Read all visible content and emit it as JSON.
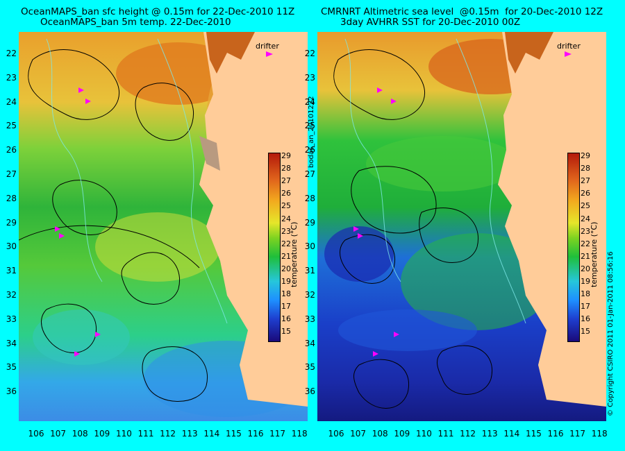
{
  "left": {
    "title_line1": "OceanMAPS_ban sfc height @ 0.15m for 22-Dec-2010 11Z",
    "title_line2": "OceanMAPS_ban 5m temp. 22-Dec-2010",
    "drifter_label": "drifter"
  },
  "right": {
    "title_line1": "CMRNRT Altimetric sea level  @0.15m  for 20-Dec-2010 12Z",
    "title_line2": "3day AVHRR SST for 20-Dec-2010 00Z",
    "drifter_label": "drifter"
  },
  "latitudes": [
    "22",
    "23",
    "24",
    "25",
    "26",
    "27",
    "28",
    "29",
    "30",
    "31",
    "32",
    "33",
    "34",
    "35",
    "36"
  ],
  "longitudes": [
    "106",
    "107",
    "108",
    "109",
    "110",
    "111",
    "112",
    "113",
    "114",
    "115",
    "116",
    "117",
    "118"
  ],
  "colorbar": {
    "ticks": [
      "29",
      "28",
      "27",
      "26",
      "25",
      "24",
      "23",
      "22",
      "21",
      "20",
      "19",
      "18",
      "17",
      "16",
      "15"
    ],
    "label": "temperature (°C)"
  },
  "side_label": "bodas_an_20101222",
  "copyright": "© Copyright CSIRO 2011  01-Jan-2011 08:56:16",
  "colors": {
    "background": "#00ffff",
    "land": "#ffcc99",
    "ocean_warm": "#e8a020",
    "ocean_mid": "#2ec83c",
    "ocean_cool": "#1e90ff",
    "drifter": "#ff00ff"
  }
}
